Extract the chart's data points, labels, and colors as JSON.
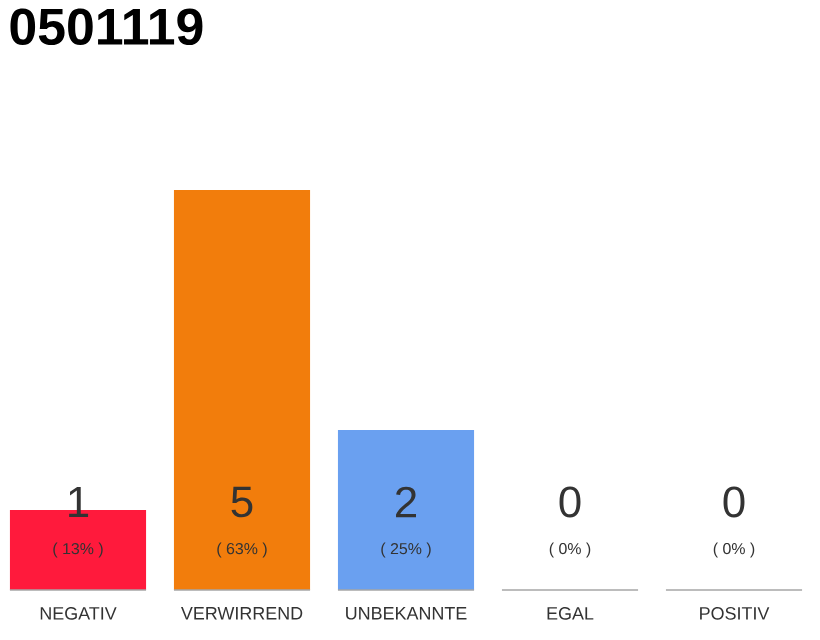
{
  "chart_data": {
    "type": "bar",
    "title": "0501119",
    "categories": [
      "NEGATIV",
      "VERWIRREND",
      "UNBEKANNTE",
      "EGAL",
      "POSITIV"
    ],
    "values": [
      1,
      5,
      2,
      0,
      0
    ],
    "colors": [
      "#ff1a3c",
      "#f27d0c",
      "#6aa0f0",
      null,
      null
    ],
    "ylim": [
      0,
      5
    ],
    "tick_labels": false,
    "data_labels": true,
    "annotations": [
      "( 13% )",
      "( 63% )",
      "( 25% )",
      "( 0% )",
      "( 0% )"
    ]
  }
}
